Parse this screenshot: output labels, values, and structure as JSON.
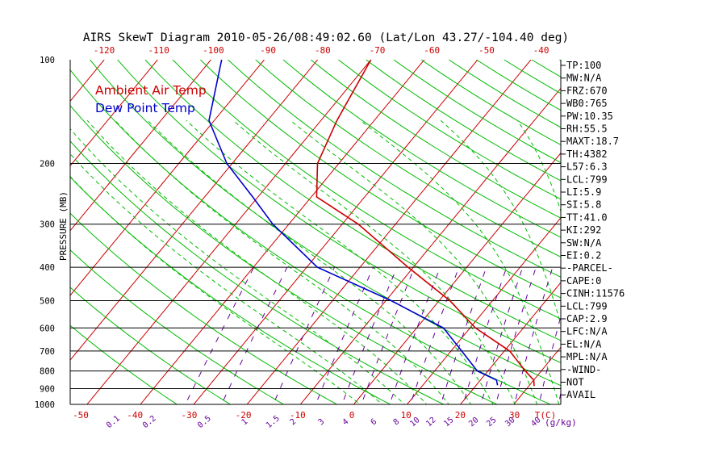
{
  "chart_data": {
    "type": "line",
    "title": "AIRS SkewT Diagram 2010-05-26/08:49:02.60 (Lat/Lon 43.27/-104.40 deg)",
    "ylabel": "PRESSURE (MB)",
    "pressure_ticks": [
      "100",
      "200",
      "300",
      "400",
      "500",
      "600",
      "700",
      "800",
      "900",
      "1000"
    ],
    "top_temp_ticks": [
      "-120",
      "-110",
      "-100",
      "-90",
      "-80",
      "-70",
      "-60",
      "-50",
      "-40"
    ],
    "bottom_temp_ticks": [
      "-50",
      "-40",
      "-30",
      "-20",
      "-10",
      "0",
      "10",
      "20",
      "30"
    ],
    "bottom_unit_label": "T(C)",
    "mixing_ratio_ticks": [
      "0.1",
      "0.2",
      "0.5",
      "1",
      "1.5",
      "2",
      "3",
      "4",
      "6",
      "8",
      "10",
      "12",
      "15",
      "20",
      "25",
      "30",
      "40"
    ],
    "mixing_ratio_unit": "(g/kg)",
    "ylim": [
      1000,
      100
    ],
    "xlim": [
      -50,
      40
    ],
    "legend": [
      {
        "label": "Ambient Air Temp",
        "color": "#cc0000"
      },
      {
        "label": "Dew Point Temp",
        "color": "#0000cc"
      }
    ],
    "series": [
      {
        "name": "Ambient Air Temp",
        "color": "#cc0000",
        "points": [
          {
            "p": 885,
            "t": 21.0
          },
          {
            "p": 850,
            "t": 20.0
          },
          {
            "p": 800,
            "t": 17.0
          },
          {
            "p": 700,
            "t": 11.0
          },
          {
            "p": 600,
            "t": 1.0
          },
          {
            "p": 500,
            "t": -8.0
          },
          {
            "p": 400,
            "t": -21.0
          },
          {
            "p": 300,
            "t": -37.0
          },
          {
            "p": 250,
            "t": -49.0
          },
          {
            "p": 200,
            "t": -54.0
          },
          {
            "p": 150,
            "t": -57.0
          },
          {
            "p": 100,
            "t": -60.0
          }
        ]
      },
      {
        "name": "Dew Point Temp",
        "color": "#0000cc",
        "points": [
          {
            "p": 880,
            "t": 14.0
          },
          {
            "p": 850,
            "t": 13.0
          },
          {
            "p": 800,
            "t": 8.0
          },
          {
            "p": 700,
            "t": 2.0
          },
          {
            "p": 600,
            "t": -5.0
          },
          {
            "p": 500,
            "t": -19.0
          },
          {
            "p": 400,
            "t": -38.0
          },
          {
            "p": 300,
            "t": -53.0
          },
          {
            "p": 250,
            "t": -61.0
          },
          {
            "p": 200,
            "t": -71.0
          },
          {
            "p": 150,
            "t": -81.0
          },
          {
            "p": 100,
            "t": -88.0
          }
        ]
      }
    ]
  },
  "indices": [
    "TP:100",
    "MW:N/A",
    "FRZ:670",
    "WB0:765",
    "PW:10.35",
    "RH:55.5",
    "MAXT:18.7",
    "TH:4382",
    "L57:6.3",
    "LCL:799",
    "LI:5.9",
    "SI:5.8",
    "TT:41.0",
    "KI:292",
    "SW:N/A",
    "EI:0.2",
    "-PARCEL-",
    "CAPE:0",
    "CINH:11576",
    "LCL:799",
    "CAP:2.9",
    "LFC:N/A",
    "EL:N/A",
    "MPL:N/A",
    "-WIND-",
    "NOT",
    "AVAIL"
  ],
  "colors": {
    "isotherm": "#cc0000",
    "dry_adiabat": "#00bb00",
    "moist_adiabat": "#00bb00",
    "mixing_ratio": "#660099",
    "isobar": "#000000"
  }
}
